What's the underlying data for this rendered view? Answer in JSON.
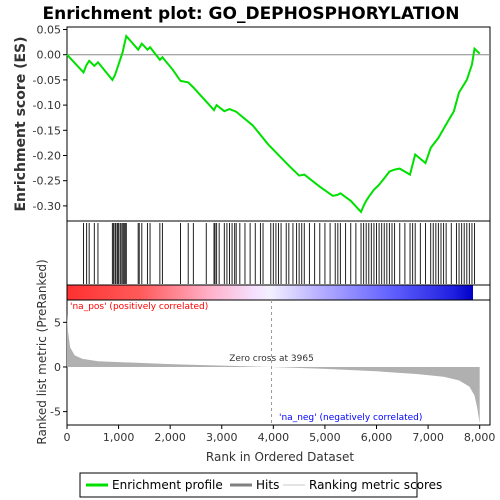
{
  "chart_data": {
    "type": "line",
    "title": "Enrichment plot: GO_DEPHOSPHORYLATION",
    "es_panel": {
      "ylabel": "Enrichment score (ES)",
      "ylim": [
        -0.33,
        0.055
      ],
      "yticks": [
        0.05,
        0.0,
        -0.05,
        -0.1,
        -0.15,
        -0.2,
        -0.25,
        -0.3
      ],
      "ytick_labels": [
        "0.05",
        "0.00",
        "-0.05",
        "-0.10",
        "-0.15",
        "-0.20",
        "-0.25",
        "-0.30"
      ],
      "line_color": "#00e000",
      "profile": [
        [
          0,
          0.0
        ],
        [
          320,
          -0.035
        ],
        [
          380,
          -0.02
        ],
        [
          430,
          -0.012
        ],
        [
          530,
          -0.022
        ],
        [
          600,
          -0.015
        ],
        [
          880,
          -0.05
        ],
        [
          930,
          -0.04
        ],
        [
          980,
          -0.025
        ],
        [
          1030,
          -0.01
        ],
        [
          1080,
          0.005
        ],
        [
          1110,
          0.02
        ],
        [
          1150,
          0.037
        ],
        [
          1380,
          0.01
        ],
        [
          1450,
          0.022
        ],
        [
          1560,
          0.01
        ],
        [
          1610,
          0.015
        ],
        [
          1800,
          -0.01
        ],
        [
          1850,
          -0.005
        ],
        [
          2050,
          -0.03
        ],
        [
          2200,
          -0.052
        ],
        [
          2350,
          -0.055
        ],
        [
          2450,
          -0.065
        ],
        [
          2850,
          -0.11
        ],
        [
          2900,
          -0.1
        ],
        [
          3050,
          -0.112
        ],
        [
          3150,
          -0.108
        ],
        [
          3280,
          -0.113
        ],
        [
          3600,
          -0.14
        ],
        [
          3900,
          -0.178
        ],
        [
          4300,
          -0.22
        ],
        [
          4500,
          -0.24
        ],
        [
          4600,
          -0.238
        ],
        [
          4900,
          -0.262
        ],
        [
          5150,
          -0.28
        ],
        [
          5250,
          -0.278
        ],
        [
          5300,
          -0.275
        ],
        [
          5500,
          -0.29
        ],
        [
          5700,
          -0.312
        ],
        [
          5750,
          -0.3
        ],
        [
          5800,
          -0.29
        ],
        [
          5850,
          -0.282
        ],
        [
          5950,
          -0.268
        ],
        [
          6050,
          -0.258
        ],
        [
          6150,
          -0.245
        ],
        [
          6250,
          -0.232
        ],
        [
          6350,
          -0.228
        ],
        [
          6450,
          -0.226
        ],
        [
          6650,
          -0.238
        ],
        [
          6750,
          -0.198
        ],
        [
          6950,
          -0.215
        ],
        [
          7050,
          -0.185
        ],
        [
          7200,
          -0.165
        ],
        [
          7350,
          -0.138
        ],
        [
          7500,
          -0.112
        ],
        [
          7600,
          -0.075
        ],
        [
          7750,
          -0.05
        ],
        [
          7850,
          -0.02
        ],
        [
          7900,
          0.012
        ],
        [
          8000,
          0.002
        ]
      ]
    },
    "hits": [
      320,
      380,
      430,
      530,
      600,
      880,
      900,
      930,
      950,
      980,
      1000,
      1030,
      1050,
      1080,
      1100,
      1110,
      1130,
      1150,
      1380,
      1400,
      1450,
      1560,
      1610,
      1800,
      1850,
      2200,
      2350,
      2450,
      2700,
      2850,
      2870,
      2900,
      2950,
      3050,
      3100,
      3150,
      3200,
      3250,
      3280,
      3350,
      3450,
      3550,
      3650,
      3750,
      3800,
      3950,
      4000,
      4050,
      4100,
      4150,
      4250,
      4300,
      4380,
      4450,
      4500,
      4550,
      4600,
      4700,
      4800,
      4900,
      5000,
      5100,
      5200,
      5250,
      5300,
      5400,
      5500,
      5600,
      5700,
      5750,
      5800,
      5850,
      5900,
      5950,
      6000,
      6050,
      6100,
      6150,
      6200,
      6250,
      6300,
      6350,
      6450,
      6550,
      6650,
      6700,
      6750,
      6850,
      6950,
      7050,
      7100,
      7150,
      7200,
      7250,
      7300,
      7350,
      7450,
      7550,
      7600,
      7650,
      7700,
      7750,
      7800,
      7850,
      7900
    ],
    "metric_panel": {
      "ylabel": "Ranked list metric (PreRanked)",
      "ylim": [
        -6.5,
        7.5
      ],
      "yticks": [
        5,
        0,
        -5
      ],
      "ytick_labels": [
        "5",
        "0",
        "-5"
      ],
      "fill_color": "#b0b0b0",
      "curve": [
        [
          0,
          6.0
        ],
        [
          20,
          4.0
        ],
        [
          60,
          2.2
        ],
        [
          150,
          1.3
        ],
        [
          300,
          0.9
        ],
        [
          600,
          0.65
        ],
        [
          1000,
          0.55
        ],
        [
          2000,
          0.32
        ],
        [
          3000,
          0.15
        ],
        [
          3965,
          0.0
        ],
        [
          5000,
          -0.22
        ],
        [
          6000,
          -0.48
        ],
        [
          6800,
          -0.8
        ],
        [
          7300,
          -1.1
        ],
        [
          7600,
          -1.5
        ],
        [
          7800,
          -2.2
        ],
        [
          7900,
          -3.2
        ],
        [
          7950,
          -4.5
        ],
        [
          7990,
          -6.0
        ],
        [
          8000,
          -6.3
        ]
      ]
    },
    "xaxis": {
      "label": "Rank in Ordered Dataset",
      "xlim": [
        0,
        8200
      ],
      "ticks": [
        0,
        1000,
        2000,
        3000,
        4000,
        5000,
        6000,
        7000,
        8000
      ],
      "tick_labels": [
        "0",
        "1,000",
        "2,000",
        "3,000",
        "4,000",
        "5,000",
        "6,000",
        "7,000",
        "8,000"
      ]
    },
    "annotations": {
      "pos_label": "'na_pos' (positively correlated)",
      "neg_label": "'na_neg' (negatively correlated)",
      "zero_cross": "Zero cross at 3965",
      "zero_cross_x": 3965
    },
    "legend": {
      "placement": "bottom",
      "items": [
        {
          "label": "Enrichment profile",
          "color": "#00e000",
          "kind": "line"
        },
        {
          "label": "Hits",
          "color": "#808080",
          "kind": "line"
        },
        {
          "label": "Ranking metric scores",
          "color": "#c8c8c8",
          "kind": "line"
        }
      ]
    },
    "colors": {
      "pos": "#ff0000",
      "neg": "#0000ff",
      "pos_text": "#ff0000",
      "neg_text": "#0000ff"
    }
  }
}
